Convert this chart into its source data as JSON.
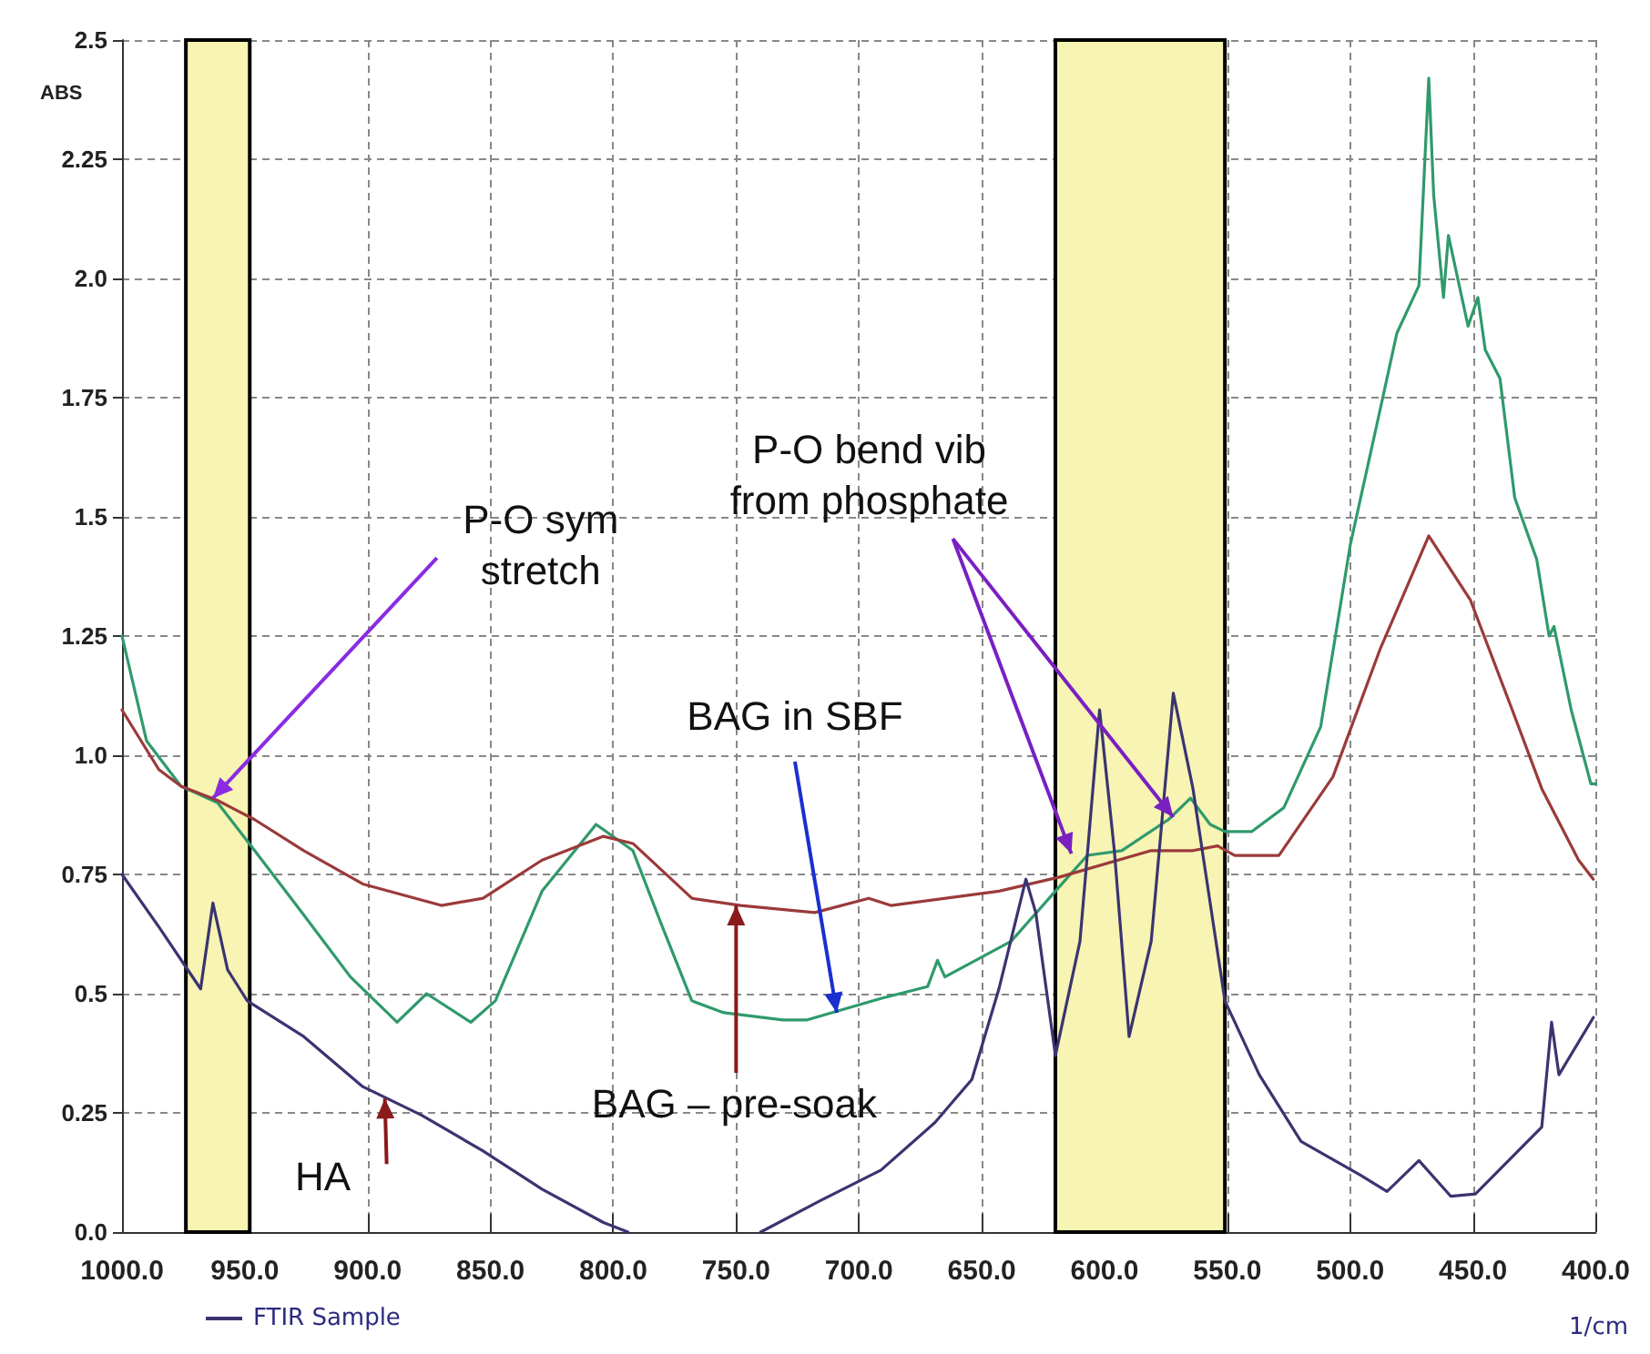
{
  "chart_data": {
    "type": "line",
    "xlabel": "1/cm",
    "ylabel": "ABS",
    "xlim": [
      1000,
      400
    ],
    "ylim": [
      0,
      2.5
    ],
    "xticks": [
      {
        "value": 1000,
        "label": "1000.0"
      },
      {
        "value": 950,
        "label": "950.0"
      },
      {
        "value": 900,
        "label": "900.0"
      },
      {
        "value": 850,
        "label": "850.0"
      },
      {
        "value": 800,
        "label": "800.0"
      },
      {
        "value": 750,
        "label": "750.0"
      },
      {
        "value": 700,
        "label": "700.0"
      },
      {
        "value": 650,
        "label": "650.0"
      },
      {
        "value": 600,
        "label": "600.0"
      },
      {
        "value": 550,
        "label": "550.0"
      },
      {
        "value": 500,
        "label": "500.0"
      },
      {
        "value": 450,
        "label": "450.0"
      },
      {
        "value": 400,
        "label": "400.0"
      }
    ],
    "yticks": [
      {
        "value": 0,
        "label": "0.0"
      },
      0.25,
      0.5,
      0.75,
      {
        "value": 1,
        "label": "1.0"
      },
      1.25,
      1.5,
      1.75,
      {
        "value": 2,
        "label": "2.0"
      },
      2.25,
      2.5
    ],
    "grid": true,
    "legend": "bottom left",
    "line_style": "solid",
    "bands": [
      {
        "axis": "x",
        "from": 974,
        "to": 948,
        "color": "#f7f4b4"
      },
      {
        "axis": "x",
        "from": 620,
        "to": 551,
        "color": "#f7f4b4"
      }
    ],
    "series": [
      {
        "color": "#2f9a6c",
        "x": [
          1000,
          990,
          976,
          961,
          946,
          926,
          907,
          888,
          876,
          858,
          848,
          829,
          807,
          792,
          780,
          768,
          755,
          731,
          721,
          691,
          672,
          668,
          665,
          638,
          620,
          607,
          593,
          574,
          565,
          557,
          551,
          540,
          527,
          512,
          500,
          488,
          481,
          472,
          468,
          466,
          462,
          460,
          452,
          448,
          445,
          439,
          433,
          424,
          419,
          417,
          410,
          402,
          400
        ],
        "values": [
          1.25,
          1.03,
          0.935,
          0.9,
          0.8,
          0.665,
          0.535,
          0.44,
          0.5,
          0.44,
          0.485,
          0.715,
          0.855,
          0.8,
          0.64,
          0.485,
          0.46,
          0.445,
          0.445,
          0.49,
          0.515,
          0.57,
          0.535,
          0.61,
          0.715,
          0.79,
          0.8,
          0.865,
          0.91,
          0.855,
          0.84,
          0.84,
          0.89,
          1.06,
          1.44,
          1.72,
          1.885,
          1.985,
          2.42,
          2.175,
          1.96,
          2.09,
          1.9,
          1.96,
          1.85,
          1.79,
          1.54,
          1.41,
          1.25,
          1.27,
          1.095,
          0.94,
          0.94
        ]
      },
      {
        "color": "#9b3a3a",
        "x": [
          1000,
          985,
          976,
          961,
          946,
          926,
          902,
          870,
          853,
          829,
          804,
          792,
          768,
          748,
          718,
          696,
          687,
          643,
          618,
          581,
          564,
          554,
          547,
          529,
          507,
          488,
          468,
          451,
          434,
          422,
          407,
          401
        ],
        "values": [
          1.095,
          0.97,
          0.935,
          0.905,
          0.865,
          0.8,
          0.73,
          0.685,
          0.7,
          0.78,
          0.83,
          0.815,
          0.7,
          0.685,
          0.67,
          0.7,
          0.685,
          0.715,
          0.745,
          0.8,
          0.8,
          0.81,
          0.79,
          0.79,
          0.955,
          1.22,
          1.46,
          1.325,
          1.095,
          0.93,
          0.78,
          0.74
        ]
      },
      {
        "name": "FTIR Sample",
        "color": "#3b3470",
        "x": [
          1000,
          985,
          968,
          963,
          957,
          949,
          926,
          902,
          878,
          853,
          829,
          804,
          794,
          770,
          740,
          716,
          691,
          669,
          654,
          643,
          632,
          628,
          620,
          610,
          602,
          596,
          590,
          581,
          572,
          564,
          551,
          537,
          520,
          496,
          485,
          472,
          459,
          449,
          422,
          418,
          415,
          401
        ],
        "values": [
          0.75,
          0.64,
          0.51,
          0.69,
          0.55,
          0.485,
          0.41,
          0.305,
          0.245,
          0.17,
          0.09,
          0.02,
          0,
          null,
          0,
          0.065,
          0.13,
          0.23,
          0.32,
          0.51,
          0.74,
          0.67,
          0.37,
          0.61,
          1.095,
          0.8,
          0.41,
          0.61,
          1.13,
          0.93,
          0.485,
          0.33,
          0.19,
          0.12,
          0.085,
          0.15,
          0.075,
          0.08,
          0.22,
          0.44,
          0.33,
          0.45
        ]
      }
    ],
    "annotations": [
      {
        "text": "P-O sym\nstretch",
        "x": 963,
        "y": 0.91
      },
      {
        "text": "P-O bend vib\nfrom phosphate",
        "x": 572,
        "y": 0.87
      },
      {
        "text": "BAG in SBF",
        "x": 709,
        "y": 0.46
      },
      {
        "text": "BAG – pre-soak",
        "x": 750,
        "y": 0.685
      },
      {
        "text": "HA",
        "x": 893,
        "y": 0.28
      }
    ]
  }
}
